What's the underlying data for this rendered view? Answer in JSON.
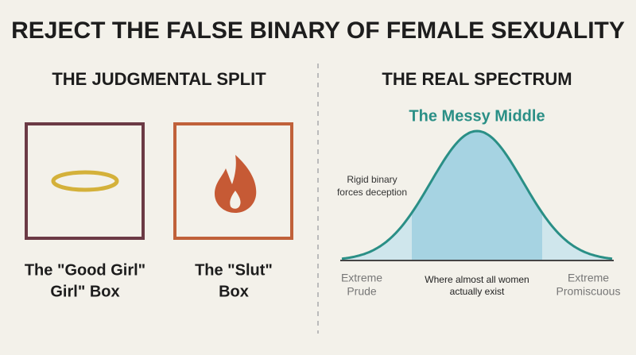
{
  "title": "REJECT THE FALSE BINARY OF FEMALE SEXUALITY",
  "left": {
    "heading": "THE JUDGMENTAL SPLIT",
    "boxes": [
      {
        "label_lines": [
          "The \"Good Girl\"",
          "Girl\" Box"
        ]
      },
      {
        "label_lines": [
          "The \"Slut\"",
          "Box"
        ]
      }
    ]
  },
  "right": {
    "heading": "THE REAL SPECTRUM",
    "curve_title": "The Messy Middle",
    "annotation_lines": [
      "Rigid binary",
      "forces deception"
    ],
    "left_label_lines": [
      "Extreme",
      "Prude"
    ],
    "middle_label_lines": [
      "Where almost all women",
      "actually exist"
    ],
    "right_label_lines": [
      "Extreme",
      "Promiscuous"
    ]
  }
}
